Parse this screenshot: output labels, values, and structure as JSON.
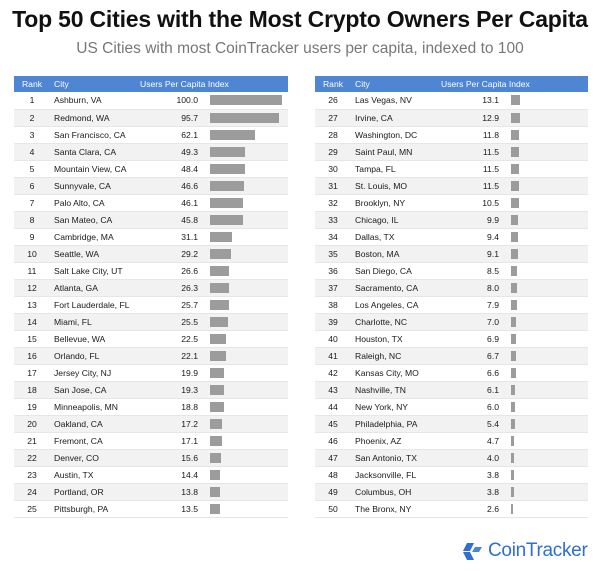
{
  "title": "Top 50 Cities with the Most Crypto Owners Per Capita",
  "subtitle": "US Cities with most CoinTracker users per capita, indexed to 100",
  "logo_text": "CoinTracker",
  "colors": {
    "header": "#4f86d3",
    "bar": "#9c9c9c",
    "logo": "#2f6fd0"
  },
  "chart_data": {
    "type": "table",
    "columns": [
      "Rank",
      "City",
      "Users Per Capita Index"
    ],
    "xlim": [
      0,
      100
    ],
    "rows": [
      {
        "rank": 1,
        "city": "Ashburn, VA",
        "value": "100.0"
      },
      {
        "rank": 2,
        "city": "Redmond, WA",
        "value": "95.7"
      },
      {
        "rank": 3,
        "city": "San Francisco, CA",
        "value": "62.1"
      },
      {
        "rank": 4,
        "city": "Santa Clara, CA",
        "value": "49.3"
      },
      {
        "rank": 5,
        "city": "Mountain View, CA",
        "value": "48.4"
      },
      {
        "rank": 6,
        "city": "Sunnyvale, CA",
        "value": "46.6"
      },
      {
        "rank": 7,
        "city": "Palo Alto, CA",
        "value": "46.1"
      },
      {
        "rank": 8,
        "city": "San Mateo, CA",
        "value": "45.8"
      },
      {
        "rank": 9,
        "city": "Cambridge, MA",
        "value": "31.1"
      },
      {
        "rank": 10,
        "city": "Seattle, WA",
        "value": "29.2"
      },
      {
        "rank": 11,
        "city": "Salt Lake City, UT",
        "value": "26.6"
      },
      {
        "rank": 12,
        "city": "Atlanta, GA",
        "value": "26.3"
      },
      {
        "rank": 13,
        "city": "Fort Lauderdale, FL",
        "value": "25.7"
      },
      {
        "rank": 14,
        "city": "Miami, FL",
        "value": "25.5"
      },
      {
        "rank": 15,
        "city": "Bellevue, WA",
        "value": "22.5"
      },
      {
        "rank": 16,
        "city": "Orlando, FL",
        "value": "22.1"
      },
      {
        "rank": 17,
        "city": "Jersey City, NJ",
        "value": "19.9"
      },
      {
        "rank": 18,
        "city": "San Jose, CA",
        "value": "19.3"
      },
      {
        "rank": 19,
        "city": "Minneapolis, MN",
        "value": "18.8"
      },
      {
        "rank": 20,
        "city": "Oakland, CA",
        "value": "17.2"
      },
      {
        "rank": 21,
        "city": "Fremont, CA",
        "value": "17.1"
      },
      {
        "rank": 22,
        "city": "Denver, CO",
        "value": "15.6"
      },
      {
        "rank": 23,
        "city": "Austin, TX",
        "value": "14.4"
      },
      {
        "rank": 24,
        "city": "Portland, OR",
        "value": "13.8"
      },
      {
        "rank": 25,
        "city": "Pittsburgh, PA",
        "value": "13.5"
      },
      {
        "rank": 26,
        "city": "Las Vegas, NV",
        "value": "13.1"
      },
      {
        "rank": 27,
        "city": "Irvine, CA",
        "value": "12.9"
      },
      {
        "rank": 28,
        "city": "Washington, DC",
        "value": "11.8"
      },
      {
        "rank": 29,
        "city": "Saint Paul, MN",
        "value": "11.5"
      },
      {
        "rank": 30,
        "city": "Tampa, FL",
        "value": "11.5"
      },
      {
        "rank": 31,
        "city": "St. Louis, MO",
        "value": "11.5"
      },
      {
        "rank": 32,
        "city": "Brooklyn, NY",
        "value": "10.5"
      },
      {
        "rank": 33,
        "city": "Chicago, IL",
        "value": "9.9"
      },
      {
        "rank": 34,
        "city": "Dallas, TX",
        "value": "9.4"
      },
      {
        "rank": 35,
        "city": "Boston, MA",
        "value": "9.1"
      },
      {
        "rank": 36,
        "city": "San Diego, CA",
        "value": "8.5"
      },
      {
        "rank": 37,
        "city": "Sacramento, CA",
        "value": "8.0"
      },
      {
        "rank": 38,
        "city": "Los Angeles, CA",
        "value": "7.9"
      },
      {
        "rank": 39,
        "city": "Charlotte, NC",
        "value": "7.0"
      },
      {
        "rank": 40,
        "city": "Houston, TX",
        "value": "6.9"
      },
      {
        "rank": 41,
        "city": "Raleigh, NC",
        "value": "6.7"
      },
      {
        "rank": 42,
        "city": "Kansas City, MO",
        "value": "6.6"
      },
      {
        "rank": 43,
        "city": "Nashville, TN",
        "value": "6.1"
      },
      {
        "rank": 44,
        "city": "New York, NY",
        "value": "6.0"
      },
      {
        "rank": 45,
        "city": "Philadelphia, PA",
        "value": "5.4"
      },
      {
        "rank": 46,
        "city": "Phoenix, AZ",
        "value": "4.7"
      },
      {
        "rank": 47,
        "city": "San Antonio, TX",
        "value": "4.0"
      },
      {
        "rank": 48,
        "city": "Jacksonville, FL",
        "value": "3.8"
      },
      {
        "rank": 49,
        "city": "Columbus, OH",
        "value": "3.8"
      },
      {
        "rank": 50,
        "city": "The Bronx, NY",
        "value": "2.6"
      }
    ]
  }
}
